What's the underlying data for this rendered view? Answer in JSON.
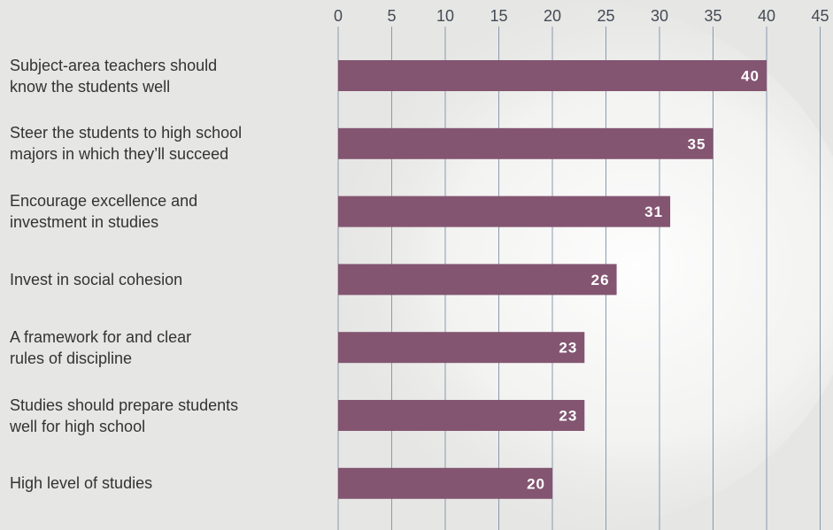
{
  "chart_data": {
    "type": "bar",
    "orientation": "horizontal",
    "categories": [
      "Subject-area teachers should\nknow the students well",
      "Steer the students to high school\nmajors in which they’ll succeed",
      "Encourage excellence and\ninvestment in studies",
      "Invest in social cohesion",
      "A framework for and clear\nrules of discipline",
      "Studies should prepare students\nwell for high school",
      "High level of studies"
    ],
    "values": [
      40,
      35,
      31,
      26,
      23,
      23,
      20
    ],
    "value_labels": [
      "40",
      "35",
      "31",
      "26",
      "23",
      "23",
      "20"
    ],
    "xlim": [
      0,
      45
    ],
    "xticks": [
      0,
      5,
      10,
      15,
      20,
      25,
      30,
      35,
      40,
      45
    ],
    "xtick_labels": [
      "0",
      "5",
      "10",
      "15",
      "20",
      "25",
      "30",
      "35",
      "40",
      "45"
    ],
    "axis_position": "top",
    "grid": true,
    "legend": "none",
    "title": "",
    "xlabel": "",
    "ylabel": "",
    "bar_color": "#835571",
    "grid_color": "#8a9aae",
    "text_color": "#333333"
  }
}
